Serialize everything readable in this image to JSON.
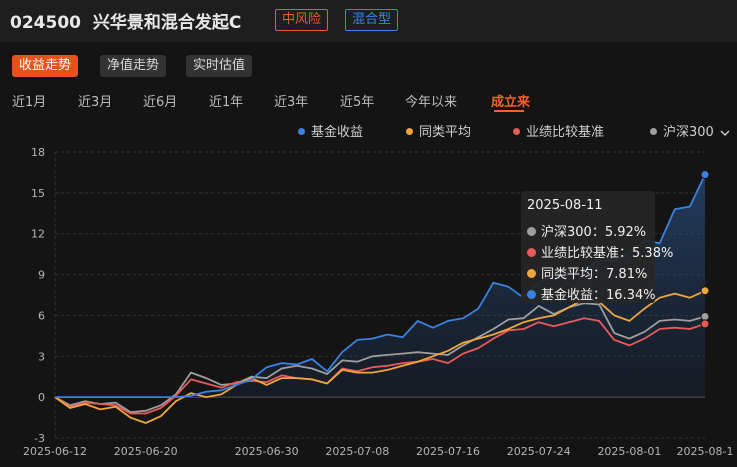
{
  "header": {
    "fund_code": "024500",
    "fund_name": "兴华景和混合发起C",
    "risk_badge": "中风险",
    "type_badge": "混合型"
  },
  "view_tabs": [
    {
      "label": "收益走势",
      "active": true
    },
    {
      "label": "净值走势",
      "active": false
    },
    {
      "label": "实时估值",
      "active": false
    }
  ],
  "periods": [
    {
      "label": "近1月",
      "active": false
    },
    {
      "label": "近3月",
      "active": false
    },
    {
      "label": "近6月",
      "active": false
    },
    {
      "label": "近1年",
      "active": false
    },
    {
      "label": "近3年",
      "active": false
    },
    {
      "label": "近5年",
      "active": false
    },
    {
      "label": "今年以来",
      "active": false
    },
    {
      "label": "成立来",
      "active": true
    }
  ],
  "legend": {
    "dropdown_icon": "chevron-down-icon"
  },
  "tooltip": {
    "date": "2025-08-11",
    "rows": [
      {
        "label": "沪深300",
        "value": "5.92%",
        "color": "#9e9e9e"
      },
      {
        "label": "业绩比较基准",
        "value": "5.38%",
        "color": "#e85a5a"
      },
      {
        "label": "同类平均",
        "value": "7.81%",
        "color": "#f0a43a"
      },
      {
        "label": "基金收益",
        "value": "16.34%",
        "color": "#3b82e0"
      }
    ]
  },
  "chart_data": {
    "type": "line",
    "title": "",
    "xlabel": "",
    "ylabel": "",
    "ylim": [
      -3,
      18
    ],
    "yticks": [
      -3,
      0,
      3,
      6,
      9,
      12,
      15,
      18
    ],
    "grid": true,
    "legend_position": "top-right",
    "x_tick_labels": [
      "2025-06-12",
      "2025-06-20",
      "2025-06-30",
      "2025-07-08",
      "2025-07-16",
      "2025-07-24",
      "2025-08-01",
      "2025-08-1"
    ],
    "x_tick_indices": [
      0,
      6,
      14,
      20,
      26,
      32,
      38,
      43
    ],
    "series": [
      {
        "name": "基金收益",
        "color": "#3b82e0",
        "area": true,
        "values": [
          0.0,
          0.0,
          0.0,
          0.0,
          0.0,
          0.0,
          0.0,
          0.0,
          0.0,
          0.1,
          0.4,
          0.5,
          0.9,
          1.3,
          2.2,
          2.5,
          2.4,
          2.8,
          1.9,
          3.3,
          4.2,
          4.3,
          4.6,
          4.4,
          5.6,
          5.1,
          5.6,
          5.8,
          6.5,
          8.4,
          8.1,
          7.3,
          8.4,
          8.9,
          9.5,
          9.3,
          10.1,
          10.0,
          10.6,
          11.5,
          11.3,
          13.8,
          14.0,
          16.34
        ]
      },
      {
        "name": "同类平均",
        "color": "#f0a43a",
        "area": false,
        "values": [
          0.0,
          -0.8,
          -0.5,
          -0.9,
          -0.7,
          -1.5,
          -1.9,
          -1.4,
          -0.3,
          0.3,
          0.0,
          0.2,
          0.9,
          1.4,
          0.9,
          1.4,
          1.4,
          1.3,
          1.0,
          2.0,
          1.8,
          1.8,
          2.0,
          2.3,
          2.6,
          3.0,
          3.4,
          4.0,
          4.3,
          4.6,
          5.0,
          5.5,
          5.8,
          6.0,
          6.6,
          7.2,
          7.0,
          6.0,
          5.6,
          6.5,
          7.3,
          7.6,
          7.3,
          7.81
        ]
      },
      {
        "name": "业绩比较基准",
        "color": "#e85a5a",
        "area": false,
        "values": [
          0.0,
          -0.7,
          -0.4,
          -0.5,
          -0.6,
          -1.2,
          -1.2,
          -0.8,
          0.1,
          1.3,
          1.0,
          0.7,
          1.1,
          1.2,
          1.1,
          1.6,
          1.4,
          1.3,
          1.0,
          2.1,
          1.9,
          2.2,
          2.3,
          2.5,
          2.6,
          2.8,
          2.5,
          3.2,
          3.6,
          4.3,
          4.9,
          5.0,
          5.5,
          5.2,
          5.5,
          5.8,
          5.6,
          4.2,
          3.8,
          4.3,
          5.0,
          5.1,
          5.0,
          5.38
        ]
      },
      {
        "name": "沪深300",
        "color": "#9e9e9e",
        "area": false,
        "values": [
          0.0,
          -0.6,
          -0.3,
          -0.5,
          -0.4,
          -1.1,
          -1.0,
          -0.6,
          0.2,
          1.8,
          1.4,
          0.9,
          1.0,
          1.5,
          1.4,
          2.1,
          2.3,
          2.1,
          1.7,
          2.7,
          2.6,
          3.0,
          3.1,
          3.2,
          3.3,
          3.2,
          3.1,
          3.8,
          4.4,
          5.0,
          5.7,
          5.8,
          6.7,
          6.1,
          6.6,
          6.9,
          6.8,
          4.7,
          4.3,
          4.8,
          5.6,
          5.7,
          5.6,
          5.92
        ]
      }
    ]
  }
}
